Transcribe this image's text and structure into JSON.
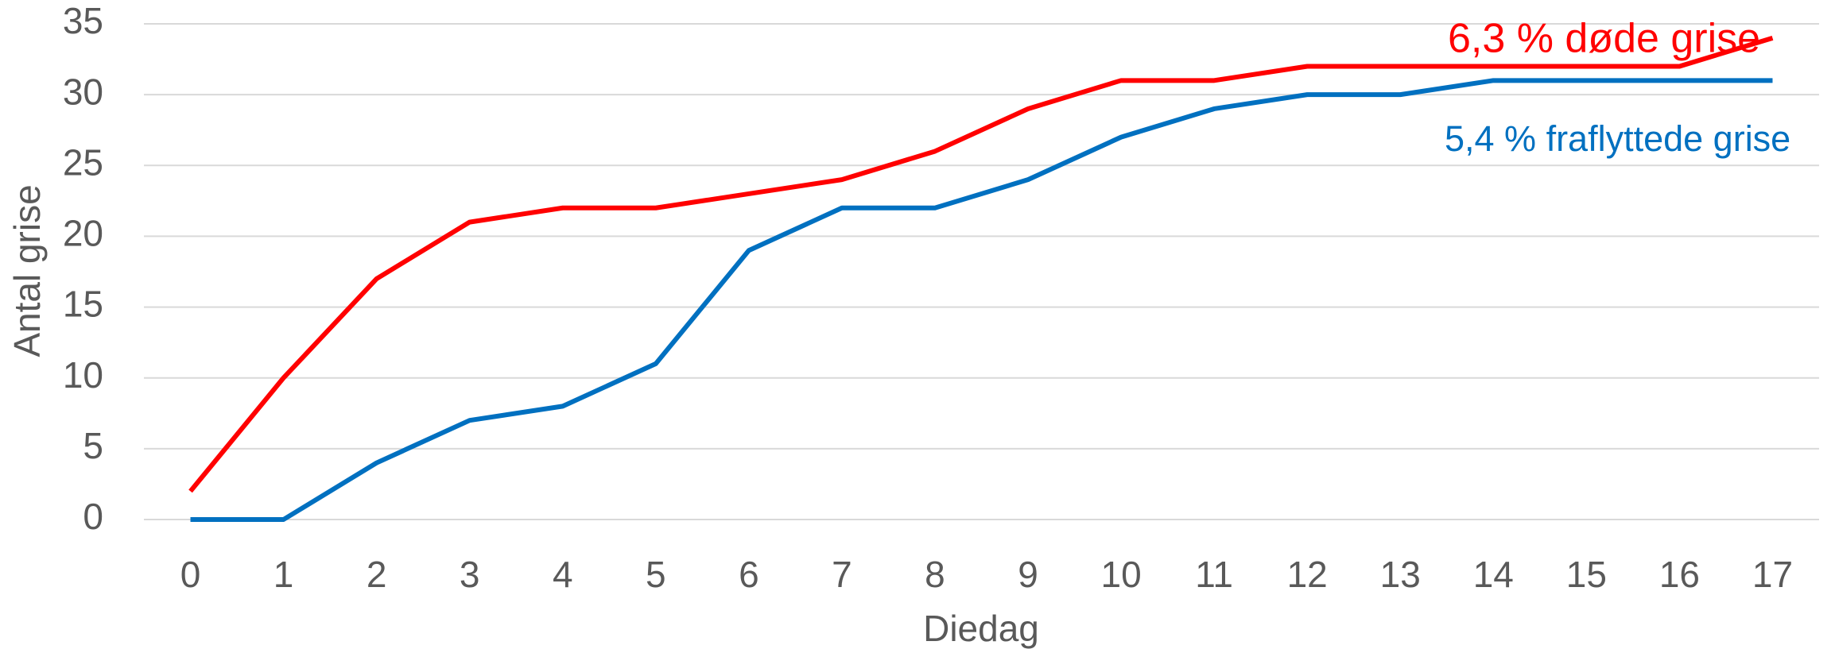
{
  "chart_data": {
    "type": "line",
    "x_label": "Diedag",
    "y_label": "Antal grise",
    "categories": [
      "0",
      "1",
      "2",
      "3",
      "4",
      "5",
      "6",
      "7",
      "8",
      "9",
      "10",
      "11",
      "12",
      "13",
      "14",
      "15",
      "16",
      "17"
    ],
    "series": [
      {
        "name": "6,3 % døde grise",
        "color": "#ff0000",
        "values": [
          2,
          10,
          17,
          21,
          22,
          22,
          23,
          24,
          26,
          29,
          31,
          31,
          32,
          32,
          32,
          32,
          32,
          34
        ]
      },
      {
        "name": "5,4 % fraflyttede grise",
        "color": "#0070c0",
        "values": [
          0,
          0,
          4,
          7,
          8,
          11,
          19,
          22,
          22,
          24,
          27,
          29,
          30,
          30,
          31,
          31,
          31,
          31
        ]
      }
    ],
    "ylim": [
      0,
      35
    ],
    "yticks": [
      0,
      5,
      10,
      15,
      20,
      25,
      30,
      35
    ],
    "grid": true
  }
}
